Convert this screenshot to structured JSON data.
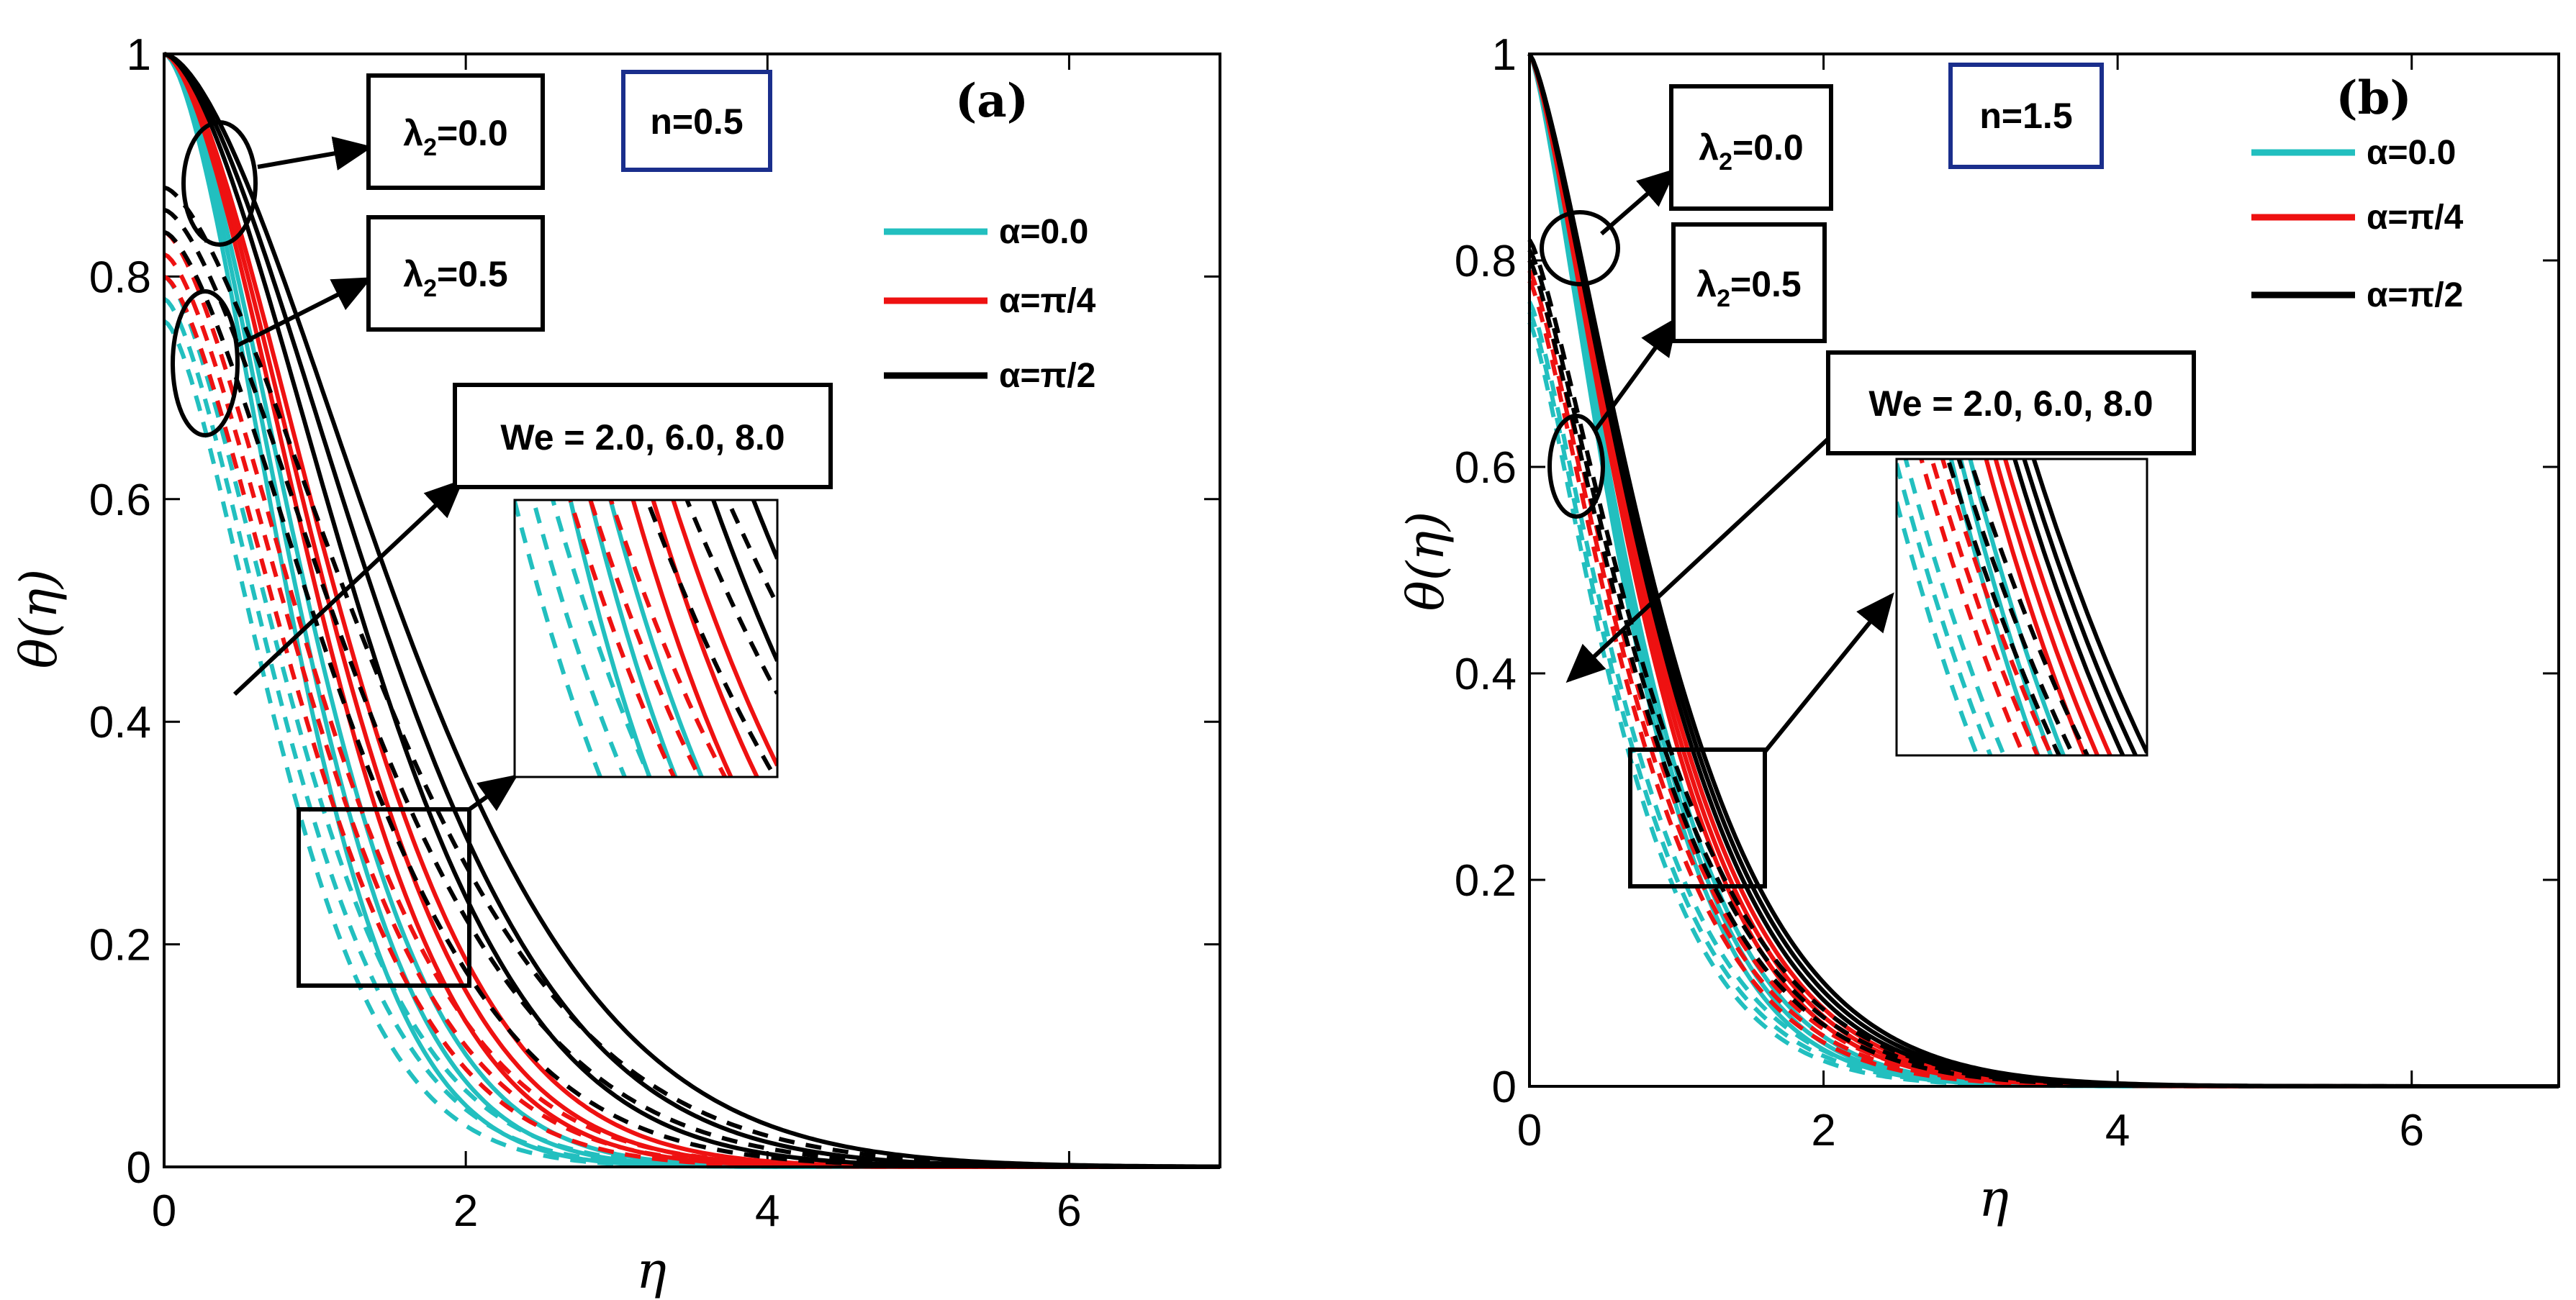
{
  "chart_data": [
    {
      "type": "line",
      "panel_label": "(a)",
      "n_label": "n=0.5",
      "xlabel": "η",
      "ylabel": "θ(η)",
      "xlim": [
        0,
        7
      ],
      "ylim": [
        0,
        1
      ],
      "xticks": [
        "0",
        "2",
        "4",
        "6"
      ],
      "yticks": [
        "0",
        "0.2",
        "0.4",
        "0.6",
        "0.8",
        "1"
      ],
      "legend": [
        {
          "label": "α=0.0",
          "color": "#22BFBF"
        },
        {
          "label": "α=π/4",
          "color": "#EE1111"
        },
        {
          "label": "α=π/2",
          "color": "#000000"
        }
      ],
      "annotations": {
        "lambda_a": "λ2=0.0",
        "lambda_b": "λ2=0.5",
        "we": "We = 2.0, 6.0, 8.0"
      },
      "series_model": "theta(eta) = theta0 * exp(-(eta/L)^p)",
      "series": [
        {
          "name": "α=0.0, λ2=0.0, We=2.0",
          "color": "#22BFBF",
          "dash": "solid",
          "theta0": 1.0,
          "L": 1.05,
          "p": 1.65
        },
        {
          "name": "α=0.0, λ2=0.0, We=6.0",
          "color": "#22BFBF",
          "dash": "solid",
          "theta0": 1.0,
          "L": 1.13,
          "p": 1.65
        },
        {
          "name": "α=0.0, λ2=0.0, We=8.0",
          "color": "#22BFBF",
          "dash": "solid",
          "theta0": 1.0,
          "L": 1.21,
          "p": 1.65
        },
        {
          "name": "α=0.0, λ2=0.5, We=2.0",
          "color": "#22BFBF",
          "dash": "dashed",
          "theta0": 0.76,
          "L": 0.98,
          "p": 1.55
        },
        {
          "name": "α=0.0, λ2=0.5, We=6.0",
          "color": "#22BFBF",
          "dash": "dashed",
          "theta0": 0.78,
          "L": 1.05,
          "p": 1.55
        },
        {
          "name": "α=0.0, λ2=0.5, We=8.0",
          "color": "#22BFBF",
          "dash": "dashed",
          "theta0": 0.8,
          "L": 1.12,
          "p": 1.55
        },
        {
          "name": "α=π/4, λ2=0.0, We=2.0",
          "color": "#EE1111",
          "dash": "solid",
          "theta0": 1.0,
          "L": 1.3,
          "p": 1.65
        },
        {
          "name": "α=π/4, λ2=0.0, We=6.0",
          "color": "#EE1111",
          "dash": "solid",
          "theta0": 1.0,
          "L": 1.38,
          "p": 1.65
        },
        {
          "name": "α=π/4, λ2=0.0, We=8.0",
          "color": "#EE1111",
          "dash": "solid",
          "theta0": 1.0,
          "L": 1.46,
          "p": 1.65
        },
        {
          "name": "α=π/4, λ2=0.5, We=2.0",
          "color": "#EE1111",
          "dash": "dashed",
          "theta0": 0.8,
          "L": 1.2,
          "p": 1.55
        },
        {
          "name": "α=π/4, λ2=0.5, We=6.0",
          "color": "#EE1111",
          "dash": "dashed",
          "theta0": 0.82,
          "L": 1.27,
          "p": 1.55
        },
        {
          "name": "α=π/4, λ2=0.5, We=8.0",
          "color": "#EE1111",
          "dash": "dashed",
          "theta0": 0.84,
          "L": 1.34,
          "p": 1.55
        },
        {
          "name": "α=π/2, λ2=0.0, We=2.0",
          "color": "#000000",
          "dash": "solid",
          "theta0": 1.0,
          "L": 1.62,
          "p": 1.65
        },
        {
          "name": "α=π/2, λ2=0.0, We=6.0",
          "color": "#000000",
          "dash": "solid",
          "theta0": 1.0,
          "L": 1.78,
          "p": 1.65
        },
        {
          "name": "α=π/2, λ2=0.0, We=8.0",
          "color": "#000000",
          "dash": "solid",
          "theta0": 1.0,
          "L": 1.95,
          "p": 1.65
        },
        {
          "name": "α=π/2, λ2=0.5, We=2.0",
          "color": "#000000",
          "dash": "dashed",
          "theta0": 0.84,
          "L": 1.5,
          "p": 1.55
        },
        {
          "name": "α=π/2, λ2=0.5, We=6.0",
          "color": "#000000",
          "dash": "dashed",
          "theta0": 0.86,
          "L": 1.65,
          "p": 1.55
        },
        {
          "name": "α=π/2, λ2=0.5, We=8.0",
          "color": "#000000",
          "dash": "dashed",
          "theta0": 0.88,
          "L": 1.8,
          "p": 1.55
        }
      ]
    },
    {
      "type": "line",
      "panel_label": "(b)",
      "n_label": "n=1.5",
      "xlabel": "η",
      "ylabel": "θ(η)",
      "xlim": [
        0,
        7
      ],
      "ylim": [
        0,
        1
      ],
      "xticks": [
        "0",
        "2",
        "4",
        "6"
      ],
      "yticks": [
        "0",
        "0.2",
        "0.4",
        "0.6",
        "0.8",
        "1"
      ],
      "legend": [
        {
          "label": "α=0.0",
          "color": "#22BFBF"
        },
        {
          "label": "α=π/4",
          "color": "#EE1111"
        },
        {
          "label": "α=π/2",
          "color": "#000000"
        }
      ],
      "annotations": {
        "lambda_a": "λ2=0.0",
        "lambda_b": "λ2=0.5",
        "we": "We = 2.0, 6.0, 8.0"
      },
      "series_model": "theta(eta) = theta0 * exp(-(eta/L)^p)",
      "series": [
        {
          "name": "α=0.0, λ2=0.0, We=2.0",
          "color": "#22BFBF",
          "dash": "solid",
          "theta0": 1.0,
          "L": 0.82,
          "p": 1.35
        },
        {
          "name": "α=0.0, λ2=0.0, We=6.0",
          "color": "#22BFBF",
          "dash": "solid",
          "theta0": 1.0,
          "L": 0.85,
          "p": 1.35
        },
        {
          "name": "α=0.0, λ2=0.0, We=8.0",
          "color": "#22BFBF",
          "dash": "solid",
          "theta0": 1.0,
          "L": 0.88,
          "p": 1.35
        },
        {
          "name": "α=0.0, λ2=0.5, We=2.0",
          "color": "#22BFBF",
          "dash": "dashed",
          "theta0": 0.74,
          "L": 0.78,
          "p": 1.3
        },
        {
          "name": "α=0.0, λ2=0.5, We=6.0",
          "color": "#22BFBF",
          "dash": "dashed",
          "theta0": 0.75,
          "L": 0.81,
          "p": 1.3
        },
        {
          "name": "α=0.0, λ2=0.5, We=8.0",
          "color": "#22BFBF",
          "dash": "dashed",
          "theta0": 0.76,
          "L": 0.84,
          "p": 1.3
        },
        {
          "name": "α=π/4, λ2=0.0, We=2.0",
          "color": "#EE1111",
          "dash": "solid",
          "theta0": 1.0,
          "L": 0.93,
          "p": 1.35
        },
        {
          "name": "α=π/4, λ2=0.0, We=6.0",
          "color": "#EE1111",
          "dash": "solid",
          "theta0": 1.0,
          "L": 0.96,
          "p": 1.35
        },
        {
          "name": "α=π/4, λ2=0.0, We=8.0",
          "color": "#EE1111",
          "dash": "solid",
          "theta0": 1.0,
          "L": 0.99,
          "p": 1.35
        },
        {
          "name": "α=π/4, λ2=0.5, We=2.0",
          "color": "#EE1111",
          "dash": "dashed",
          "theta0": 0.78,
          "L": 0.88,
          "p": 1.3
        },
        {
          "name": "α=π/4, λ2=0.5, We=6.0",
          "color": "#EE1111",
          "dash": "dashed",
          "theta0": 0.79,
          "L": 0.91,
          "p": 1.3
        },
        {
          "name": "α=π/4, λ2=0.5, We=8.0",
          "color": "#EE1111",
          "dash": "dashed",
          "theta0": 0.8,
          "L": 0.94,
          "p": 1.3
        },
        {
          "name": "α=π/2, λ2=0.0, We=2.0",
          "color": "#000000",
          "dash": "solid",
          "theta0": 1.0,
          "L": 1.02,
          "p": 1.35
        },
        {
          "name": "α=π/2, λ2=0.0, We=6.0",
          "color": "#000000",
          "dash": "solid",
          "theta0": 1.0,
          "L": 1.05,
          "p": 1.35
        },
        {
          "name": "α=π/2, λ2=0.0, We=8.0",
          "color": "#000000",
          "dash": "solid",
          "theta0": 1.0,
          "L": 1.08,
          "p": 1.35
        },
        {
          "name": "α=π/2, λ2=0.5, We=2.0",
          "color": "#000000",
          "dash": "dashed",
          "theta0": 0.8,
          "L": 0.96,
          "p": 1.3
        },
        {
          "name": "α=π/2, λ2=0.5, We=6.0",
          "color": "#000000",
          "dash": "dashed",
          "theta0": 0.81,
          "L": 0.99,
          "p": 1.3
        },
        {
          "name": "α=π/2, λ2=0.5, We=8.0",
          "color": "#000000",
          "dash": "dashed",
          "theta0": 0.82,
          "L": 1.02,
          "p": 1.3
        }
      ]
    }
  ]
}
